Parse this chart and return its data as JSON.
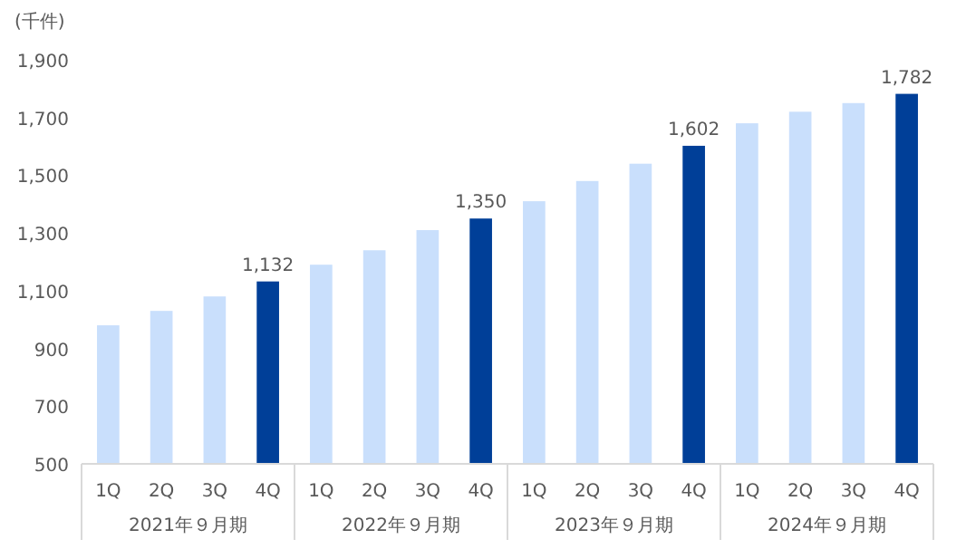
{
  "chart_data": {
    "type": "bar",
    "ylabel": "(千件)",
    "categories": [
      "1Q",
      "2Q",
      "3Q",
      "4Q",
      "1Q",
      "2Q",
      "3Q",
      "4Q",
      "1Q",
      "2Q",
      "3Q",
      "4Q",
      "1Q",
      "2Q",
      "3Q",
      "4Q"
    ],
    "values": [
      980,
      1030,
      1080,
      1132,
      1190,
      1240,
      1310,
      1350,
      1410,
      1480,
      1540,
      1602,
      1680,
      1720,
      1750,
      1782
    ],
    "colors": [
      "#c9dffc",
      "#c9dffc",
      "#c9dffc",
      "#003f98",
      "#c9dffc",
      "#c9dffc",
      "#c9dffc",
      "#003f98",
      "#c9dffc",
      "#c9dffc",
      "#c9dffc",
      "#003f98",
      "#c9dffc",
      "#c9dffc",
      "#c9dffc",
      "#003f98"
    ],
    "value_labels": [
      null,
      null,
      null,
      "1,132",
      null,
      null,
      null,
      "1,350",
      null,
      null,
      null,
      "1,602",
      null,
      null,
      null,
      "1,782"
    ],
    "ylim": [
      500,
      1900
    ],
    "yticks": [
      {
        "value": 500,
        "label": "500"
      },
      {
        "value": 700,
        "label": "700"
      },
      {
        "value": 900,
        "label": "900"
      },
      {
        "value": 1100,
        "label": "1,100"
      },
      {
        "value": 1300,
        "label": "1,300"
      },
      {
        "value": 1500,
        "label": "1,500"
      },
      {
        "value": 1700,
        "label": "1,700"
      },
      {
        "value": 1900,
        "label": "1,900"
      }
    ],
    "annotations": [
      "2021年９月期",
      "2022年９月期",
      "2023年９月期",
      "2024年９月期"
    ],
    "grid": false
  }
}
